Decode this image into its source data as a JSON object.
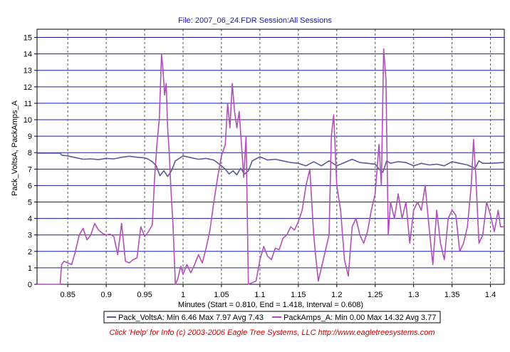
{
  "chart_data": {
    "type": "line",
    "title": "File: 2007_06_24.FDR   Session:All Sessions",
    "xlabel": "Minutes (Start = 0.810,  End = 1.418,  Interval =  0.608)",
    "ylabel": "Pack_VoltsA, PackAmps_A",
    "xlim": [
      0.81,
      1.418
    ],
    "ylim": [
      0,
      15.5
    ],
    "x_ticks": [
      "0.85",
      "0.9",
      "0.95",
      "1",
      "1.05",
      "1.1",
      "1.15",
      "1.2",
      "1.25",
      "1.3",
      "1.35",
      "1.4"
    ],
    "y_ticks": [
      "0",
      "1",
      "2",
      "3",
      "4",
      "5",
      "6",
      "7",
      "8",
      "9",
      "10",
      "11",
      "12",
      "13",
      "14",
      "15"
    ],
    "grid": true,
    "legend_position": "bottom",
    "series": [
      {
        "name": "Pack_VoltsA:  Min 6.46 Max 7.97 Avg 7.43",
        "color": "#5a5a9a",
        "points": [
          [
            0.81,
            7.97
          ],
          [
            0.84,
            7.97
          ],
          [
            0.842,
            7.85
          ],
          [
            0.85,
            7.8
          ],
          [
            0.86,
            7.7
          ],
          [
            0.87,
            7.6
          ],
          [
            0.88,
            7.62
          ],
          [
            0.89,
            7.58
          ],
          [
            0.9,
            7.65
          ],
          [
            0.91,
            7.62
          ],
          [
            0.92,
            7.72
          ],
          [
            0.93,
            7.78
          ],
          [
            0.94,
            7.72
          ],
          [
            0.95,
            7.68
          ],
          [
            0.955,
            7.6
          ],
          [
            0.96,
            7.45
          ],
          [
            0.965,
            7.2
          ],
          [
            0.97,
            6.6
          ],
          [
            0.975,
            6.9
          ],
          [
            0.98,
            6.55
          ],
          [
            0.985,
            6.9
          ],
          [
            0.99,
            7.5
          ],
          [
            1.0,
            7.8
          ],
          [
            1.01,
            7.7
          ],
          [
            1.02,
            7.6
          ],
          [
            1.03,
            7.65
          ],
          [
            1.04,
            7.55
          ],
          [
            1.05,
            7.2
          ],
          [
            1.055,
            7.0
          ],
          [
            1.06,
            6.7
          ],
          [
            1.065,
            6.9
          ],
          [
            1.07,
            6.65
          ],
          [
            1.075,
            7.05
          ],
          [
            1.08,
            6.7
          ],
          [
            1.085,
            6.9
          ],
          [
            1.09,
            7.5
          ],
          [
            1.1,
            7.75
          ],
          [
            1.11,
            7.55
          ],
          [
            1.12,
            7.6
          ],
          [
            1.13,
            7.5
          ],
          [
            1.14,
            7.4
          ],
          [
            1.15,
            7.35
          ],
          [
            1.16,
            7.2
          ],
          [
            1.17,
            7.45
          ],
          [
            1.18,
            7.2
          ],
          [
            1.19,
            7.5
          ],
          [
            1.2,
            7.2
          ],
          [
            1.21,
            7.4
          ],
          [
            1.22,
            7.6
          ],
          [
            1.23,
            7.4
          ],
          [
            1.24,
            7.35
          ],
          [
            1.25,
            7.3
          ],
          [
            1.255,
            7.0
          ],
          [
            1.26,
            6.8
          ],
          [
            1.265,
            7.5
          ],
          [
            1.27,
            7.35
          ],
          [
            1.28,
            7.45
          ],
          [
            1.29,
            7.4
          ],
          [
            1.3,
            7.2
          ],
          [
            1.31,
            7.35
          ],
          [
            1.32,
            7.25
          ],
          [
            1.33,
            7.3
          ],
          [
            1.34,
            7.2
          ],
          [
            1.35,
            7.45
          ],
          [
            1.36,
            7.35
          ],
          [
            1.37,
            7.25
          ],
          [
            1.38,
            7.05
          ],
          [
            1.385,
            7.5
          ],
          [
            1.39,
            7.35
          ],
          [
            1.4,
            7.35
          ],
          [
            1.418,
            7.4
          ]
        ]
      },
      {
        "name": "PackAmps_A:  Min 0.00 Max 14.32 Avg 3.77",
        "color": "#b050b8",
        "points": [
          [
            0.81,
            0.0
          ],
          [
            0.84,
            0.0
          ],
          [
            0.842,
            1.2
          ],
          [
            0.845,
            1.4
          ],
          [
            0.85,
            1.3
          ],
          [
            0.855,
            1.2
          ],
          [
            0.86,
            2.0
          ],
          [
            0.865,
            3.0
          ],
          [
            0.87,
            3.4
          ],
          [
            0.875,
            2.7
          ],
          [
            0.88,
            3.0
          ],
          [
            0.885,
            3.7
          ],
          [
            0.89,
            3.3
          ],
          [
            0.895,
            3.1
          ],
          [
            0.9,
            3.0
          ],
          [
            0.905,
            3.05
          ],
          [
            0.91,
            2.9
          ],
          [
            0.915,
            1.8
          ],
          [
            0.92,
            3.7
          ],
          [
            0.925,
            1.4
          ],
          [
            0.93,
            1.3
          ],
          [
            0.935,
            1.5
          ],
          [
            0.94,
            1.6
          ],
          [
            0.945,
            3.5
          ],
          [
            0.95,
            2.9
          ],
          [
            0.955,
            3.2
          ],
          [
            0.96,
            3.6
          ],
          [
            0.963,
            6.5
          ],
          [
            0.966,
            8.5
          ],
          [
            0.969,
            10.0
          ],
          [
            0.972,
            14.0
          ],
          [
            0.974,
            13.0
          ],
          [
            0.976,
            11.5
          ],
          [
            0.978,
            12.2
          ],
          [
            0.98,
            9.5
          ],
          [
            0.982,
            8.0
          ],
          [
            0.984,
            6.0
          ],
          [
            0.987,
            3.5
          ],
          [
            0.99,
            0.0
          ],
          [
            0.993,
            0.3
          ],
          [
            0.997,
            1.1
          ],
          [
            1.0,
            0.6
          ],
          [
            1.005,
            1.2
          ],
          [
            1.01,
            0.7
          ],
          [
            1.015,
            1.2
          ],
          [
            1.02,
            1.8
          ],
          [
            1.025,
            1.3
          ],
          [
            1.03,
            2.2
          ],
          [
            1.035,
            3.3
          ],
          [
            1.04,
            5.0
          ],
          [
            1.045,
            6.5
          ],
          [
            1.05,
            7.8
          ],
          [
            1.055,
            8.5
          ],
          [
            1.058,
            11.0
          ],
          [
            1.061,
            9.5
          ],
          [
            1.064,
            12.2
          ],
          [
            1.067,
            10.5
          ],
          [
            1.07,
            9.5
          ],
          [
            1.073,
            10.5
          ],
          [
            1.076,
            8.5
          ],
          [
            1.079,
            6.5
          ],
          [
            1.082,
            9.0
          ],
          [
            1.085,
            0.0
          ],
          [
            1.09,
            0.1
          ],
          [
            1.095,
            0.2
          ],
          [
            1.1,
            1.5
          ],
          [
            1.105,
            2.3
          ],
          [
            1.11,
            1.7
          ],
          [
            1.115,
            1.5
          ],
          [
            1.12,
            2.2
          ],
          [
            1.125,
            2.1
          ],
          [
            1.13,
            2.8
          ],
          [
            1.135,
            3.0
          ],
          [
            1.14,
            3.5
          ],
          [
            1.145,
            3.3
          ],
          [
            1.15,
            3.8
          ],
          [
            1.155,
            4.5
          ],
          [
            1.16,
            6.0
          ],
          [
            1.165,
            7.0
          ],
          [
            1.17,
            3.0
          ],
          [
            1.173,
            1.5
          ],
          [
            1.176,
            0.2
          ],
          [
            1.18,
            1.0
          ],
          [
            1.185,
            2.0
          ],
          [
            1.19,
            3.0
          ],
          [
            1.193,
            9.0
          ],
          [
            1.196,
            10.3
          ],
          [
            1.2,
            6.0
          ],
          [
            1.205,
            4.5
          ],
          [
            1.21,
            1.5
          ],
          [
            1.215,
            0.5
          ],
          [
            1.22,
            3.5
          ],
          [
            1.225,
            4.0
          ],
          [
            1.23,
            3.0
          ],
          [
            1.235,
            2.5
          ],
          [
            1.24,
            3.2
          ],
          [
            1.245,
            4.5
          ],
          [
            1.25,
            5.5
          ],
          [
            1.255,
            8.5
          ],
          [
            1.258,
            6.0
          ],
          [
            1.261,
            14.3
          ],
          [
            1.264,
            12.5
          ],
          [
            1.267,
            3.0
          ],
          [
            1.27,
            5.0
          ],
          [
            1.275,
            4.0
          ],
          [
            1.28,
            5.5
          ],
          [
            1.285,
            4.0
          ],
          [
            1.29,
            5.0
          ],
          [
            1.295,
            2.5
          ],
          [
            1.3,
            4.5
          ],
          [
            1.305,
            5.0
          ],
          [
            1.31,
            4.5
          ],
          [
            1.315,
            6.0
          ],
          [
            1.32,
            3.5
          ],
          [
            1.325,
            1.2
          ],
          [
            1.33,
            4.5
          ],
          [
            1.335,
            2.5
          ],
          [
            1.34,
            1.5
          ],
          [
            1.345,
            4.0
          ],
          [
            1.35,
            4.5
          ],
          [
            1.355,
            4.2
          ],
          [
            1.36,
            2.0
          ],
          [
            1.365,
            2.5
          ],
          [
            1.37,
            3.5
          ],
          [
            1.375,
            6.0
          ],
          [
            1.378,
            8.8
          ],
          [
            1.381,
            6.5
          ],
          [
            1.385,
            2.5
          ],
          [
            1.39,
            3.0
          ],
          [
            1.395,
            5.0
          ],
          [
            1.4,
            4.2
          ],
          [
            1.405,
            3.2
          ],
          [
            1.41,
            4.5
          ],
          [
            1.413,
            3.5
          ],
          [
            1.418,
            3.5
          ]
        ]
      }
    ]
  },
  "footer": {
    "text": "Click 'Help' for Info  (c) 2003-2006 Eagle Tree Systems, LLC     http://www.eagletreesystems.com"
  }
}
